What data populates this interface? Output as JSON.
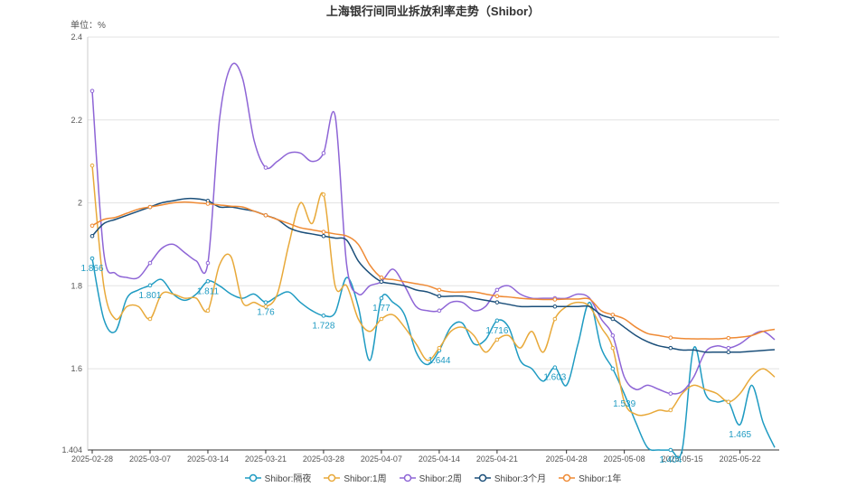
{
  "chart_data": {
    "type": "line",
    "title": "上海银行间同业拆放利率走势（Shibor）",
    "unit_label": "单位：%",
    "x_ticks": [
      "2025-02-28",
      "2025-03-07",
      "2025-03-14",
      "2025-03-21",
      "2025-03-28",
      "2025-04-07",
      "2025-04-14",
      "2025-04-21",
      "2025-04-28",
      "2025-05-08",
      "2025-05-15",
      "2025-05-22"
    ],
    "y_ticks": [
      1.404,
      1.6,
      1.8,
      2,
      2.2,
      2.4
    ],
    "ylim": [
      1.404,
      2.4
    ],
    "grid": true,
    "legend_position": "bottom",
    "x": [
      "2025-02-28",
      "2025-03-03",
      "2025-03-04",
      "2025-03-05",
      "2025-03-06",
      "2025-03-07",
      "2025-03-10",
      "2025-03-11",
      "2025-03-12",
      "2025-03-13",
      "2025-03-14",
      "2025-03-17",
      "2025-03-18",
      "2025-03-19",
      "2025-03-20",
      "2025-03-21",
      "2025-03-24",
      "2025-03-25",
      "2025-03-26",
      "2025-03-27",
      "2025-03-28",
      "2025-03-31",
      "2025-04-01",
      "2025-04-02",
      "2025-04-03",
      "2025-04-07",
      "2025-04-08",
      "2025-04-09",
      "2025-04-10",
      "2025-04-11",
      "2025-04-14",
      "2025-04-15",
      "2025-04-16",
      "2025-04-17",
      "2025-04-18",
      "2025-04-21",
      "2025-04-22",
      "2025-04-23",
      "2025-04-24",
      "2025-04-25",
      "2025-04-27",
      "2025-04-28",
      "2025-04-29",
      "2025-04-30",
      "2025-05-06",
      "2025-05-07",
      "2025-05-08",
      "2025-05-09",
      "2025-05-12",
      "2025-05-13",
      "2025-05-14",
      "2025-05-15",
      "2025-05-16",
      "2025-05-19",
      "2025-05-20",
      "2025-05-21",
      "2025-05-22",
      "2025-05-23",
      "2025-05-26",
      "2025-05-27"
    ],
    "series": [
      {
        "name": "Shibor:隔夜",
        "color": "#1f9bc2",
        "values": [
          1.866,
          1.72,
          1.69,
          1.77,
          1.79,
          1.801,
          1.815,
          1.78,
          1.765,
          1.78,
          1.811,
          1.8,
          1.78,
          1.77,
          1.78,
          1.76,
          1.775,
          1.785,
          1.76,
          1.74,
          1.728,
          1.735,
          1.82,
          1.75,
          1.62,
          1.77,
          1.76,
          1.73,
          1.64,
          1.61,
          1.644,
          1.7,
          1.71,
          1.66,
          1.67,
          1.716,
          1.7,
          1.62,
          1.6,
          1.57,
          1.603,
          1.56,
          1.66,
          1.76,
          1.65,
          1.6,
          1.539,
          1.47,
          1.41,
          1.404,
          1.404,
          1.404,
          1.65,
          1.54,
          1.52,
          1.52,
          1.465,
          1.56,
          1.47,
          1.41
        ]
      },
      {
        "name": "Shibor:1周",
        "color": "#e8a93a",
        "values": [
          2.09,
          1.8,
          1.72,
          1.75,
          1.75,
          1.72,
          1.78,
          1.78,
          1.77,
          1.77,
          1.74,
          1.85,
          1.87,
          1.76,
          1.76,
          1.75,
          1.78,
          1.9,
          2.0,
          1.95,
          2.02,
          1.8,
          1.8,
          1.72,
          1.69,
          1.72,
          1.73,
          1.7,
          1.66,
          1.62,
          1.65,
          1.69,
          1.7,
          1.68,
          1.64,
          1.67,
          1.68,
          1.65,
          1.69,
          1.64,
          1.72,
          1.75,
          1.76,
          1.75,
          1.7,
          1.65,
          1.52,
          1.49,
          1.49,
          1.5,
          1.5,
          1.54,
          1.56,
          1.55,
          1.54,
          1.52,
          1.54,
          1.58,
          1.6,
          1.58
        ]
      },
      {
        "name": "Shibor:2周",
        "color": "#8e65d6",
        "values": [
          2.27,
          1.88,
          1.83,
          1.82,
          1.82,
          1.855,
          1.89,
          1.9,
          1.88,
          1.86,
          1.855,
          2.2,
          2.33,
          2.3,
          2.15,
          2.085,
          2.1,
          2.12,
          2.12,
          2.1,
          2.12,
          2.21,
          1.85,
          1.78,
          1.8,
          1.81,
          1.84,
          1.8,
          1.75,
          1.74,
          1.74,
          1.76,
          1.76,
          1.74,
          1.75,
          1.79,
          1.8,
          1.78,
          1.77,
          1.77,
          1.77,
          1.77,
          1.78,
          1.77,
          1.72,
          1.68,
          1.58,
          1.55,
          1.56,
          1.55,
          1.54,
          1.545,
          1.58,
          1.64,
          1.655,
          1.65,
          1.66,
          1.68,
          1.69,
          1.67
        ]
      },
      {
        "name": "Shibor:3个月",
        "color": "#1b4f7a",
        "values": [
          1.92,
          1.95,
          1.96,
          1.97,
          1.98,
          1.99,
          2.0,
          2.005,
          2.01,
          2.01,
          2.005,
          1.99,
          1.99,
          1.985,
          1.98,
          1.97,
          1.96,
          1.94,
          1.93,
          1.925,
          1.92,
          1.915,
          1.91,
          1.86,
          1.83,
          1.81,
          1.805,
          1.8,
          1.79,
          1.785,
          1.775,
          1.775,
          1.775,
          1.77,
          1.765,
          1.76,
          1.755,
          1.75,
          1.75,
          1.75,
          1.75,
          1.75,
          1.75,
          1.75,
          1.73,
          1.72,
          1.7,
          1.68,
          1.665,
          1.655,
          1.65,
          1.645,
          1.645,
          1.64,
          1.64,
          1.64,
          1.64,
          1.642,
          1.644,
          1.646
        ]
      },
      {
        "name": "Shibor:1年",
        "color": "#ef8a34",
        "values": [
          1.945,
          1.96,
          1.965,
          1.975,
          1.985,
          1.99,
          1.995,
          2.0,
          2.002,
          2.0,
          1.998,
          1.995,
          1.992,
          1.99,
          1.98,
          1.97,
          1.96,
          1.95,
          1.94,
          1.935,
          1.93,
          1.925,
          1.92,
          1.9,
          1.85,
          1.82,
          1.815,
          1.81,
          1.805,
          1.8,
          1.79,
          1.785,
          1.785,
          1.785,
          1.78,
          1.775,
          1.773,
          1.77,
          1.768,
          1.767,
          1.767,
          1.768,
          1.768,
          1.768,
          1.74,
          1.73,
          1.72,
          1.7,
          1.685,
          1.68,
          1.675,
          1.673,
          1.672,
          1.672,
          1.672,
          1.674,
          1.676,
          1.68,
          1.69,
          1.695
        ]
      }
    ],
    "data_labels": [
      {
        "series": 0,
        "index": 0,
        "text": "1.866"
      },
      {
        "series": 0,
        "index": 5,
        "text": "1.801"
      },
      {
        "series": 0,
        "index": 10,
        "text": "1.811"
      },
      {
        "series": 0,
        "index": 15,
        "text": "1.76"
      },
      {
        "series": 0,
        "index": 20,
        "text": "1.728"
      },
      {
        "series": 0,
        "index": 25,
        "text": "1.77"
      },
      {
        "series": 0,
        "index": 30,
        "text": "1.644"
      },
      {
        "series": 0,
        "index": 35,
        "text": "1.716"
      },
      {
        "series": 0,
        "index": 40,
        "text": "1.603"
      },
      {
        "series": 0,
        "index": 46,
        "text": "1.539"
      },
      {
        "series": 0,
        "index": 50,
        "text": "1.404"
      },
      {
        "series": 0,
        "index": 56,
        "text": "1.465"
      }
    ]
  }
}
